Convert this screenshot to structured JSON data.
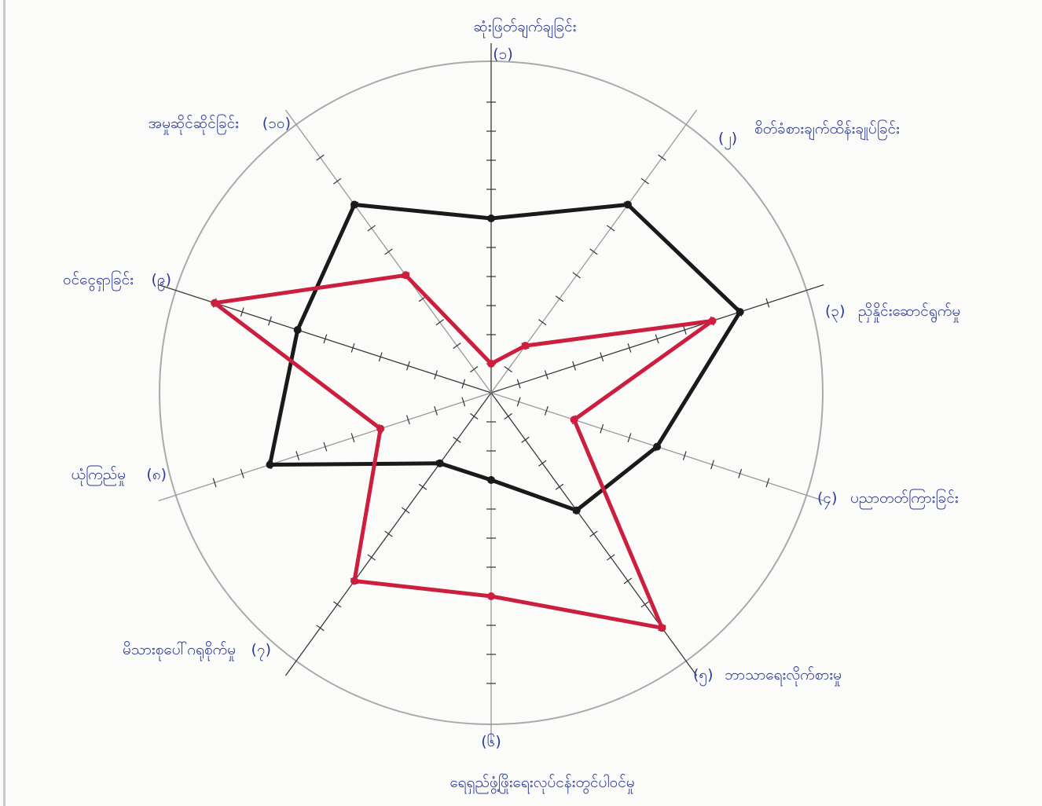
{
  "chart_data": {
    "type": "radar",
    "title": "",
    "scale": {
      "min": 0,
      "max": 10,
      "grid": "outer-circle-only"
    },
    "axes": [
      {
        "num": "(၁)",
        "label": "ဆုံးဖြတ်ချက်ချခြင်း"
      },
      {
        "num": "(၂)",
        "label": "စိတ်ခံစားချက်ထိန်းချုပ်ခြင်း"
      },
      {
        "num": "(၃)",
        "label": "ညှိနှိုင်းဆောင်ရွက်မှု"
      },
      {
        "num": "(၄)",
        "label": "ပညာတတ်ကြားခြင်း"
      },
      {
        "num": "(၅)",
        "label": "ဘာသာရေးလိုက်စားမှု"
      },
      {
        "num": "(၆)",
        "label": "ရေရှည်ဖွံ့ဖြိုးရေးလုပ်ငန်းတွင်ပါဝင်မှု"
      },
      {
        "num": "(၇)",
        "label": "မိသားစုပေါ်ဂရုစိုက်မှု"
      },
      {
        "num": "(၈)",
        "label": "ယုံကြည်မှု"
      },
      {
        "num": "(၉)",
        "label": "ဝင်ငွေရှာခြင်း"
      },
      {
        "num": "(၁၀)",
        "label": "အမှုဆိုင်ဆိုင်ခြင်း"
      }
    ],
    "series": [
      {
        "color": "#1a1a1a",
        "values": [
          6,
          8,
          9,
          6,
          5,
          3,
          3,
          8,
          7,
          8
        ]
      },
      {
        "color": "#cc1f3f",
        "values": [
          1,
          2,
          8,
          3,
          10,
          7,
          8,
          4,
          10,
          5
        ]
      }
    ]
  }
}
